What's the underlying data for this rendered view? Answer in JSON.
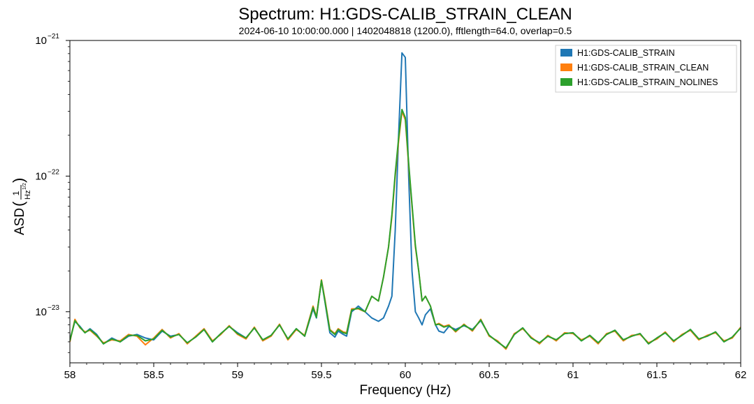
{
  "chart_data": {
    "type": "line",
    "title": "Spectrum: H1:GDS-CALIB_STRAIN_CLEAN",
    "subtitle": "2024-06-10 10:00:00.000 | 1402048818 (1200.0), fftlength=64.0, overlap=0.5",
    "xlabel": "Frequency (Hz)",
    "ylabel_prefix": "ASD",
    "ylabel_num": "1",
    "ylabel_den": "Hz",
    "ylabel_den_exp": "1/2",
    "x_scale": "linear",
    "y_scale": "log",
    "xlim": [
      58,
      62
    ],
    "ylim": [
      4.2e-24,
      1e-21
    ],
    "grid": false,
    "legend_position": "top-right",
    "x_ticks": [
      {
        "value": 58,
        "label": "58"
      },
      {
        "value": 58.5,
        "label": "58.5"
      },
      {
        "value": 59,
        "label": "59"
      },
      {
        "value": 59.5,
        "label": "59.5"
      },
      {
        "value": 60,
        "label": "60"
      },
      {
        "value": 60.5,
        "label": "60.5"
      },
      {
        "value": 61,
        "label": "61"
      },
      {
        "value": 61.5,
        "label": "61.5"
      },
      {
        "value": 62,
        "label": "62"
      }
    ],
    "y_ticks": [
      {
        "value": 1e-23,
        "mantissa": "10",
        "exponent": "−23"
      },
      {
        "value": 1e-22,
        "mantissa": "10",
        "exponent": "−22"
      },
      {
        "value": 1e-21,
        "mantissa": "10",
        "exponent": "−21"
      }
    ],
    "series": [
      {
        "name": "H1:GDS-CALIB_STRAIN",
        "color": "#1f77b4",
        "x": [
          58.0,
          58.03,
          58.06,
          58.09,
          58.12,
          58.16,
          58.2,
          58.25,
          58.3,
          58.35,
          58.4,
          58.45,
          58.5,
          58.55,
          58.6,
          58.65,
          58.7,
          58.75,
          58.8,
          58.85,
          58.9,
          58.95,
          59.0,
          59.05,
          59.1,
          59.15,
          59.2,
          59.25,
          59.3,
          59.35,
          59.4,
          59.45,
          59.47,
          59.5,
          59.52,
          59.55,
          59.58,
          59.6,
          59.63,
          59.65,
          59.68,
          59.72,
          59.76,
          59.8,
          59.84,
          59.87,
          59.9,
          59.92,
          59.94,
          59.96,
          59.98,
          60.0,
          60.02,
          60.04,
          60.06,
          60.08,
          60.1,
          60.12,
          60.15,
          60.18,
          60.2,
          60.23,
          60.26,
          60.3,
          60.35,
          60.4,
          60.45,
          60.5,
          60.55,
          60.6,
          60.65,
          60.7,
          60.75,
          60.8,
          60.85,
          60.9,
          60.95,
          61.0,
          61.05,
          61.1,
          61.15,
          61.2,
          61.25,
          61.3,
          61.35,
          61.4,
          61.45,
          61.5,
          61.55,
          61.6,
          61.65,
          61.7,
          61.75,
          61.8,
          61.85,
          61.9,
          61.95,
          62.0
        ],
        "y": [
          6.2e-24,
          8.5e-24,
          7.8e-24,
          7e-24,
          7.5e-24,
          6.8e-24,
          5.8e-24,
          6.4e-24,
          6e-24,
          6.6e-24,
          6.8e-24,
          6.4e-24,
          6.2e-24,
          7.2e-24,
          6.6e-24,
          6.8e-24,
          5.9e-24,
          6.5e-24,
          7.4e-24,
          6e-24,
          6.9e-24,
          7.8e-24,
          7e-24,
          6.4e-24,
          7.6e-24,
          6.2e-24,
          6.7e-24,
          8e-24,
          6.3e-24,
          7.5e-24,
          6.6e-24,
          1.05e-23,
          9e-24,
          1.7e-23,
          1.2e-23,
          7e-24,
          6.5e-24,
          7.2e-24,
          6.8e-24,
          6.6e-24,
          1e-23,
          1.1e-23,
          1e-23,
          9e-24,
          8.5e-24,
          9e-24,
          1.1e-23,
          1.3e-23,
          4e-23,
          2e-22,
          8.1e-22,
          7.5e-22,
          1e-22,
          2e-23,
          1e-23,
          9e-24,
          8e-24,
          9.5e-24,
          1.05e-23,
          8e-24,
          7.2e-24,
          7e-24,
          7.8e-24,
          7.4e-24,
          7.9e-24,
          7.4e-24,
          8.6e-24,
          6.7e-24,
          6e-24,
          5.4e-24,
          6.8e-24,
          7.6e-24,
          6.4e-24,
          5.9e-24,
          6.6e-24,
          6.2e-24,
          6.9e-24,
          7e-24,
          6.1e-24,
          6.7e-24,
          5.9e-24,
          6.8e-24,
          7.3e-24,
          6.2e-24,
          6.6e-24,
          6.9e-24,
          5.8e-24,
          6.4e-24,
          7e-24,
          6.1e-24,
          6.7e-24,
          7.4e-24,
          6.3e-24,
          6.6e-24,
          7.1e-24,
          6e-24,
          6.5e-24,
          7.6e-24
        ]
      },
      {
        "name": "H1:GDS-CALIB_STRAIN_CLEAN",
        "color": "#ff7f0e",
        "x": [
          58.0,
          58.03,
          58.06,
          58.09,
          58.12,
          58.16,
          58.2,
          58.25,
          58.3,
          58.35,
          58.4,
          58.45,
          58.5,
          58.55,
          58.6,
          58.65,
          58.7,
          58.75,
          58.8,
          58.85,
          58.9,
          58.95,
          59.0,
          59.05,
          59.1,
          59.15,
          59.2,
          59.25,
          59.3,
          59.35,
          59.4,
          59.45,
          59.47,
          59.5,
          59.52,
          59.55,
          59.58,
          59.6,
          59.63,
          59.65,
          59.68,
          59.72,
          59.76,
          59.8,
          59.84,
          59.87,
          59.9,
          59.92,
          59.94,
          59.96,
          59.98,
          60.0,
          60.02,
          60.04,
          60.06,
          60.08,
          60.1,
          60.12,
          60.15,
          60.18,
          60.2,
          60.23,
          60.26,
          60.3,
          60.35,
          60.4,
          60.45,
          60.5,
          60.55,
          60.6,
          60.65,
          60.7,
          60.75,
          60.8,
          60.85,
          60.9,
          60.95,
          61.0,
          61.05,
          61.1,
          61.15,
          61.2,
          61.25,
          61.3,
          61.35,
          61.4,
          61.45,
          61.5,
          61.55,
          61.6,
          61.65,
          61.7,
          61.75,
          61.8,
          61.85,
          61.9,
          61.95,
          62.0
        ],
        "y": [
          6e-24,
          8.8e-24,
          7.6e-24,
          7.1e-24,
          7.3e-24,
          6.6e-24,
          5.9e-24,
          6.2e-24,
          6.1e-24,
          6.8e-24,
          6.6e-24,
          5.7e-24,
          6.4e-24,
          7.4e-24,
          6.4e-24,
          6.9e-24,
          5.8e-24,
          6.6e-24,
          7.5e-24,
          6.1e-24,
          6.8e-24,
          7.9e-24,
          6.8e-24,
          6.3e-24,
          7.7e-24,
          6.1e-24,
          6.6e-24,
          8.1e-24,
          6.2e-24,
          7.4e-24,
          6.7e-24,
          1.1e-23,
          9.2e-24,
          1.72e-23,
          1.25e-23,
          7.4e-24,
          6.9e-24,
          7.5e-24,
          7.1e-24,
          7e-24,
          1.05e-23,
          1.05e-23,
          1e-23,
          1.3e-23,
          1.2e-23,
          1.8e-23,
          3e-23,
          5e-23,
          1e-22,
          1.8e-22,
          3e-22,
          2.6e-22,
          1.2e-22,
          6e-23,
          3e-23,
          2e-23,
          1.2e-23,
          1.3e-23,
          1.1e-23,
          8e-24,
          8.2e-24,
          7.8e-24,
          8e-24,
          7.1e-24,
          8.1e-24,
          7.2e-24,
          8.8e-24,
          6.6e-24,
          6.1e-24,
          5.3e-24,
          6.9e-24,
          7.5e-24,
          6.5e-24,
          5.8e-24,
          6.7e-24,
          6.1e-24,
          7e-24,
          6.9e-24,
          6.2e-24,
          6.6e-24,
          5.8e-24,
          6.9e-24,
          7.2e-24,
          6.1e-24,
          6.7e-24,
          6.8e-24,
          5.9e-24,
          6.3e-24,
          7.1e-24,
          6e-24,
          6.8e-24,
          7.3e-24,
          6.2e-24,
          6.7e-24,
          7e-24,
          6.1e-24,
          6.4e-24,
          7.7e-24
        ]
      },
      {
        "name": "H1:GDS-CALIB_STRAIN_NOLINES",
        "color": "#2ca02c",
        "x": [
          58.0,
          58.03,
          58.06,
          58.09,
          58.12,
          58.16,
          58.2,
          58.25,
          58.3,
          58.35,
          58.4,
          58.45,
          58.5,
          58.55,
          58.6,
          58.65,
          58.7,
          58.75,
          58.8,
          58.85,
          58.9,
          58.95,
          59.0,
          59.05,
          59.1,
          59.15,
          59.2,
          59.25,
          59.3,
          59.35,
          59.4,
          59.45,
          59.47,
          59.5,
          59.52,
          59.55,
          59.58,
          59.6,
          59.63,
          59.65,
          59.68,
          59.72,
          59.76,
          59.8,
          59.84,
          59.87,
          59.9,
          59.92,
          59.94,
          59.96,
          59.98,
          60.0,
          60.02,
          60.04,
          60.06,
          60.08,
          60.1,
          60.12,
          60.15,
          60.18,
          60.2,
          60.23,
          60.26,
          60.3,
          60.35,
          60.4,
          60.45,
          60.5,
          60.55,
          60.6,
          60.65,
          60.7,
          60.75,
          60.8,
          60.85,
          60.9,
          60.95,
          61.0,
          61.05,
          61.1,
          61.15,
          61.2,
          61.25,
          61.3,
          61.35,
          61.4,
          61.45,
          61.5,
          61.55,
          61.6,
          61.65,
          61.7,
          61.75,
          61.8,
          61.85,
          61.9,
          61.95,
          62.0
        ],
        "y": [
          6.1e-24,
          8.6e-24,
          7.7e-24,
          7e-24,
          7.4e-24,
          6.7e-24,
          5.8e-24,
          6.3e-24,
          6e-24,
          6.7e-24,
          6.7e-24,
          6.1e-24,
          6.3e-24,
          7.3e-24,
          6.5e-24,
          6.8e-24,
          5.9e-24,
          6.5e-24,
          7.4e-24,
          6e-24,
          6.9e-24,
          7.8e-24,
          6.9e-24,
          6.4e-24,
          7.6e-24,
          6.2e-24,
          6.7e-24,
          8e-24,
          6.3e-24,
          7.5e-24,
          6.6e-24,
          1.08e-23,
          9.1e-24,
          1.7e-23,
          1.22e-23,
          7.3e-24,
          6.8e-24,
          7.4e-24,
          7e-24,
          6.9e-24,
          1.03e-23,
          1.06e-23,
          1e-23,
          1.3e-23,
          1.2e-23,
          1.8e-23,
          3e-23,
          5.2e-23,
          1.05e-22,
          1.9e-22,
          3.1e-22,
          2.7e-22,
          1.25e-22,
          6.2e-23,
          3.1e-23,
          2e-23,
          1.2e-23,
          1.3e-23,
          1.1e-23,
          8e-24,
          8.1e-24,
          7.7e-24,
          7.9e-24,
          7.2e-24,
          8e-24,
          7.3e-24,
          8.7e-24,
          6.7e-24,
          6e-24,
          5.4e-24,
          6.8e-24,
          7.6e-24,
          6.4e-24,
          5.9e-24,
          6.6e-24,
          6.2e-24,
          6.9e-24,
          7e-24,
          6.1e-24,
          6.7e-24,
          5.9e-24,
          6.8e-24,
          7.3e-24,
          6.2e-24,
          6.6e-24,
          6.9e-24,
          5.8e-24,
          6.4e-24,
          7e-24,
          6.1e-24,
          6.7e-24,
          7.4e-24,
          6.3e-24,
          6.6e-24,
          7.1e-24,
          6e-24,
          6.5e-24,
          7.6e-24
        ]
      }
    ]
  }
}
